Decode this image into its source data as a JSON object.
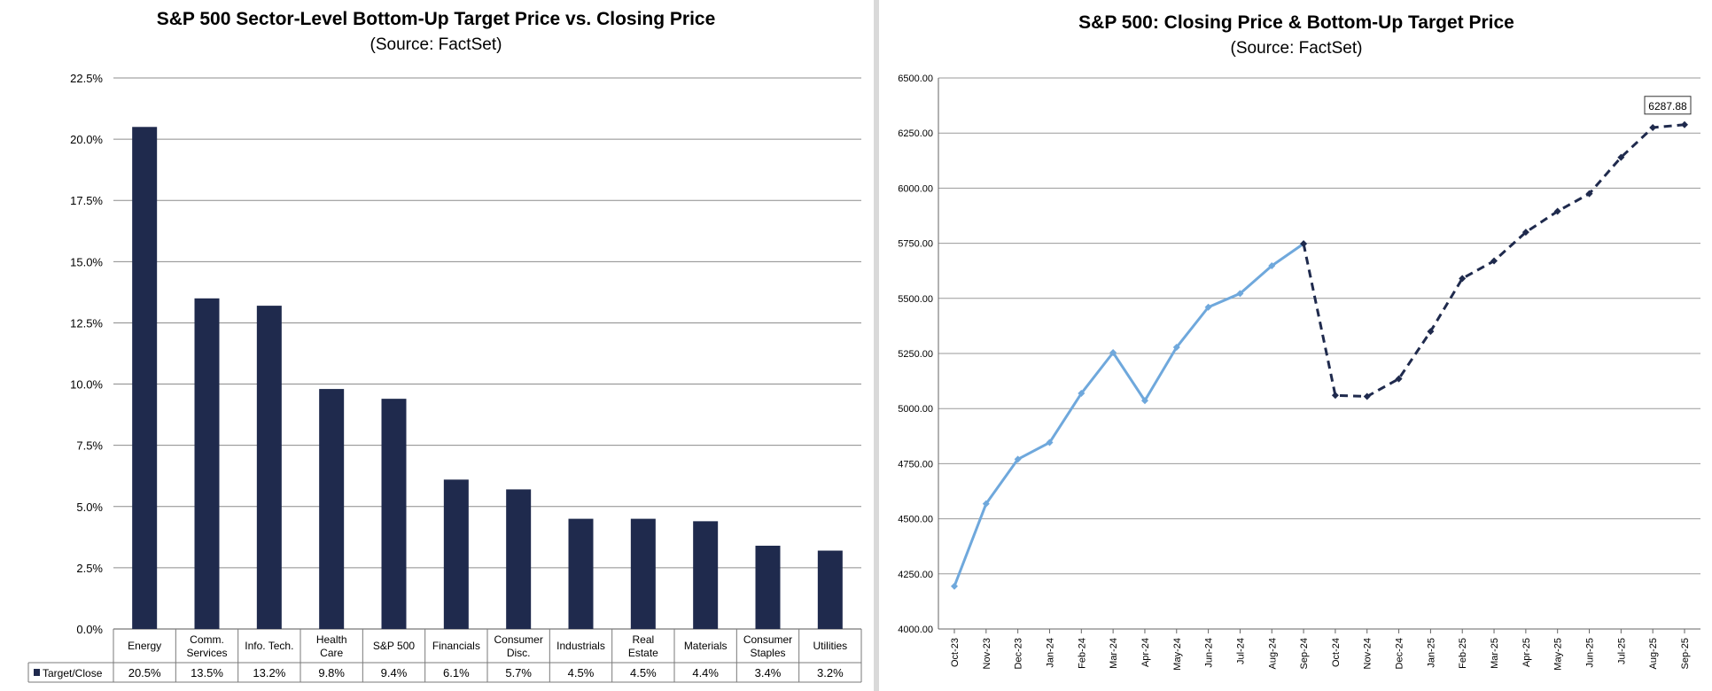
{
  "chart_data": [
    {
      "type": "bar",
      "title": "S&P 500 Sector-Level Bottom-Up Target Price vs. Closing Price",
      "subtitle": "(Source: FactSet)",
      "categories": [
        "Energy",
        "Comm.\nServices",
        "Info. Tech.",
        "Health\nCare",
        "S&P 500",
        "Financials",
        "Consumer\nDisc.",
        "Industrials",
        "Real\nEstate",
        "Materials",
        "Consumer\nStaples",
        "Utilities"
      ],
      "series": [
        {
          "name": "Target/Close",
          "values": [
            20.5,
            13.5,
            13.2,
            9.8,
            9.4,
            6.1,
            5.7,
            4.5,
            4.5,
            4.4,
            3.4,
            3.2
          ],
          "labels": [
            "20.5%",
            "13.5%",
            "13.2%",
            "9.8%",
            "9.4%",
            "6.1%",
            "5.7%",
            "4.5%",
            "4.5%",
            "4.4%",
            "3.4%",
            "3.2%"
          ]
        }
      ],
      "ylim": [
        0,
        22.5
      ],
      "yticks": [
        "0.0%",
        "2.5%",
        "5.0%",
        "7.5%",
        "10.0%",
        "12.5%",
        "15.0%",
        "17.5%",
        "20.0%",
        "22.5%"
      ],
      "bar_color": "#1f2a4d",
      "grid": true,
      "legend": "data-table"
    },
    {
      "type": "line",
      "title": "S&P 500: Closing Price & Bottom-Up Target Price",
      "subtitle": "(Source: FactSet)",
      "x": [
        "Oct-23",
        "Nov-23",
        "Dec-23",
        "Jan-24",
        "Feb-24",
        "Mar-24",
        "Apr-24",
        "May-24",
        "Jun-24",
        "Jul-24",
        "Aug-24",
        "Sep-24",
        "Oct-24",
        "Nov-24",
        "Dec-24",
        "Jan-25",
        "Feb-25",
        "Mar-25",
        "Apr-25",
        "May-25",
        "Jun-25",
        "Jul-25",
        "Aug-25",
        "Sep-25"
      ],
      "series": [
        {
          "style": "solid",
          "color": "#6fa8dc",
          "values": [
            4194,
            4568,
            4770,
            4846,
            5069,
            5254,
            5036,
            5278,
            5460,
            5522,
            5648,
            5748,
            null,
            null,
            null,
            null,
            null,
            null,
            null,
            null,
            null,
            null,
            null,
            null
          ]
        },
        {
          "style": "dashed",
          "color": "#1f2a4d",
          "values": [
            null,
            null,
            null,
            null,
            null,
            null,
            null,
            null,
            null,
            null,
            null,
            5748,
            5060,
            5055,
            5135,
            5350,
            5590,
            5670,
            5800,
            5895,
            5975,
            6140,
            6275,
            6287.88
          ]
        }
      ],
      "annotation": "6287.88",
      "ylim": [
        4000,
        6500
      ],
      "yticks": [
        "4000.00",
        "4250.00",
        "4500.00",
        "4750.00",
        "5000.00",
        "5250.00",
        "5500.00",
        "5750.00",
        "6000.00",
        "6250.00",
        "6500.00"
      ],
      "grid": true
    }
  ]
}
